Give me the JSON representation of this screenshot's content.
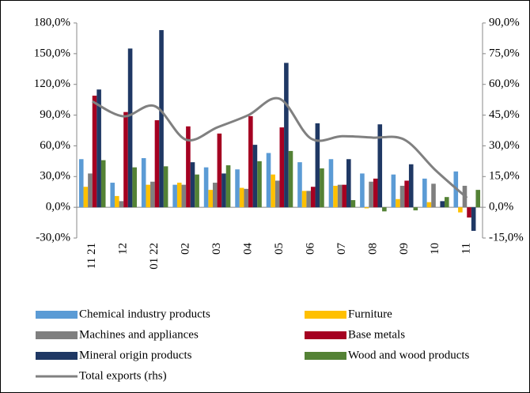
{
  "chart_data": {
    "type": "bar",
    "categories": [
      "11 21",
      "12",
      "01 22",
      "02",
      "03",
      "04",
      "05",
      "06",
      "07",
      "08",
      "09",
      "10",
      "11"
    ],
    "series": [
      {
        "name": "Chemical industry products",
        "color": "#5b9bd5",
        "values": [
          47,
          24,
          48,
          22,
          39,
          37,
          53,
          44,
          47,
          33,
          32,
          28,
          35
        ]
      },
      {
        "name": "Furniture",
        "color": "#ffc000",
        "values": [
          20,
          11,
          22,
          24,
          17,
          19,
          32,
          16,
          21,
          -1,
          8,
          5,
          -5
        ]
      },
      {
        "name": "Machines and appliances",
        "color": "#7f7f7f",
        "values": [
          33,
          6,
          25,
          22,
          24,
          18,
          26,
          16,
          22,
          25,
          21,
          23,
          21
        ]
      },
      {
        "name": "Base metals",
        "color": "#a50021",
        "values": [
          109,
          93,
          85,
          79,
          72,
          89,
          78,
          20,
          22,
          28,
          26,
          0,
          -10
        ]
      },
      {
        "name": "Mineral origin products",
        "color": "#1f3864",
        "values": [
          115,
          155,
          173,
          44,
          33,
          61,
          141,
          82,
          47,
          81,
          42,
          6,
          -23
        ]
      },
      {
        "name": "Wood and wood products",
        "color": "#548235",
        "values": [
          46,
          39,
          40,
          32,
          41,
          45,
          55,
          38,
          7,
          -4,
          -3,
          10,
          17
        ]
      },
      {
        "name": "Total exports (rhs)",
        "color": "#808080",
        "type": "line",
        "axis": "y2",
        "values": [
          51.7,
          44.4,
          49.4,
          33,
          39,
          45,
          53,
          33.6,
          34.7,
          34,
          33,
          18,
          4.6
        ]
      }
    ],
    "ylim": [
      -30,
      180
    ],
    "yticks": [
      {
        "value": -30,
        "label": "-30,0%"
      },
      {
        "value": 0,
        "label": "0,0%"
      },
      {
        "value": 30,
        "label": "30,0%"
      },
      {
        "value": 60,
        "label": "60,0%"
      },
      {
        "value": 90,
        "label": "90,0%"
      },
      {
        "value": 120,
        "label": "120,0%"
      },
      {
        "value": 150,
        "label": "150,0%"
      },
      {
        "value": 180,
        "label": "180,0%"
      }
    ],
    "y2lim": [
      -15,
      90
    ],
    "y2ticks": [
      {
        "value": -15,
        "label": "-15,0%"
      },
      {
        "value": 0,
        "label": "0,0%"
      },
      {
        "value": 15,
        "label": "15,0%"
      },
      {
        "value": 30,
        "label": "30,0%"
      },
      {
        "value": 45,
        "label": "45,0%"
      },
      {
        "value": 60,
        "label": "60,0%"
      },
      {
        "value": 75,
        "label": "75,0%"
      },
      {
        "value": 90,
        "label": "90,0%"
      }
    ],
    "grid": false,
    "legend": "bottom"
  }
}
